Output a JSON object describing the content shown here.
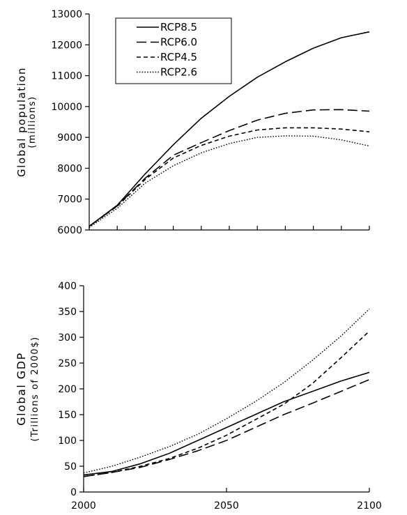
{
  "chart_data": [
    {
      "type": "line",
      "ylabel": "Global population",
      "ylabel_sub": "(millions)",
      "xlim": [
        2000,
        2100
      ],
      "ylim": [
        6000,
        13000
      ],
      "yticks": [
        6000,
        7000,
        8000,
        9000,
        10000,
        11000,
        12000,
        13000
      ],
      "ytick_labels": [
        "6000",
        "7000",
        "8000",
        "9000",
        "10000",
        "11000",
        "12000",
        "13000"
      ],
      "legend_position": "top-left",
      "x": [
        2000,
        2010,
        2020,
        2030,
        2040,
        2050,
        2060,
        2070,
        2080,
        2090,
        2100
      ],
      "series": [
        {
          "name": "RCP8.5",
          "style": "solid",
          "values": [
            6120,
            6800,
            7820,
            8760,
            9620,
            10330,
            10950,
            11450,
            11890,
            12230,
            12420
          ]
        },
        {
          "name": "RCP6.0",
          "style": "longdash",
          "values": [
            6120,
            6780,
            7680,
            8420,
            8830,
            9220,
            9560,
            9780,
            9890,
            9900,
            9850
          ]
        },
        {
          "name": "RCP4.5",
          "style": "shortdash",
          "values": [
            6120,
            6770,
            7640,
            8330,
            8740,
            9040,
            9240,
            9310,
            9310,
            9270,
            9180
          ]
        },
        {
          "name": "RCP2.6",
          "style": "dotted",
          "values": [
            6080,
            6700,
            7520,
            8080,
            8500,
            8800,
            9000,
            9050,
            9040,
            8920,
            8720
          ]
        }
      ]
    },
    {
      "type": "line",
      "ylabel": "Global GDP",
      "ylabel_sub": "(Trillions of 2000$)",
      "xlim": [
        2000,
        2100
      ],
      "ylim": [
        0,
        400
      ],
      "xticks": [
        2000,
        2050,
        2100
      ],
      "xtick_labels": [
        "2000",
        "2050",
        "2100"
      ],
      "yticks": [
        0,
        50,
        100,
        150,
        200,
        250,
        300,
        350,
        400
      ],
      "ytick_labels": [
        "0",
        "50",
        "100",
        "150",
        "200",
        "250",
        "300",
        "350",
        "400"
      ],
      "x": [
        2000,
        2010,
        2020,
        2030,
        2040,
        2050,
        2060,
        2070,
        2080,
        2090,
        2100
      ],
      "series": [
        {
          "name": "RCP8.5",
          "style": "solid",
          "values": [
            33,
            40,
            55,
            75,
            100,
            125,
            150,
            175,
            195,
            215,
            232
          ]
        },
        {
          "name": "RCP6.0",
          "style": "longdash",
          "values": [
            30,
            38,
            48,
            63,
            80,
            100,
            125,
            150,
            172,
            195,
            218
          ]
        },
        {
          "name": "RCP4.5",
          "style": "shortdash",
          "values": [
            30,
            38,
            50,
            65,
            85,
            110,
            140,
            170,
            210,
            260,
            312
          ]
        },
        {
          "name": "RCP2.6",
          "style": "dotted",
          "values": [
            37,
            50,
            68,
            88,
            112,
            142,
            175,
            212,
            255,
            302,
            355
          ]
        }
      ]
    }
  ],
  "colors": {
    "line": "#000000",
    "background": "#ffffff"
  }
}
